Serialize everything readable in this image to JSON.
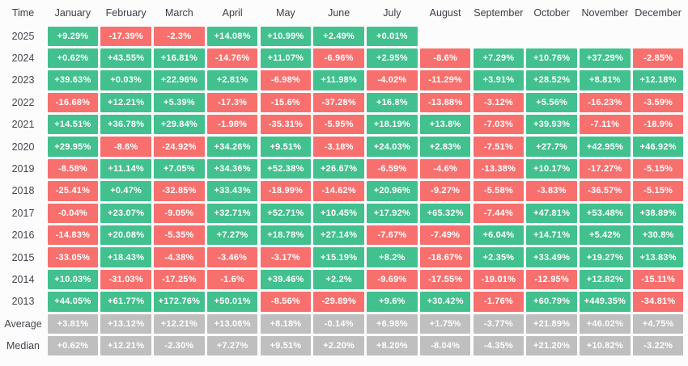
{
  "header": {
    "time_label": "Time"
  },
  "colors": {
    "positive": "#42c08e",
    "negative": "#f7706e",
    "neutral": "#bfbfbf",
    "background": "#fcfcfc",
    "value_text": "#ffffff",
    "label_text": "#3d3d47"
  },
  "chart_data": {
    "type": "heatmap",
    "title": "Monthly returns heatmap by year",
    "legend_position": "none",
    "grid": false,
    "columns": [
      "January",
      "February",
      "March",
      "April",
      "May",
      "June",
      "July",
      "August",
      "September",
      "October",
      "November",
      "December"
    ],
    "rows": [
      {
        "label": "2025",
        "kind": "year",
        "values": [
          "+9.29%",
          "-17.39%",
          "-2.3%",
          "+14.08%",
          "+10.99%",
          "+2.49%",
          "+0.01%",
          null,
          null,
          null,
          null,
          null
        ]
      },
      {
        "label": "2024",
        "kind": "year",
        "values": [
          "+0.62%",
          "+43.55%",
          "+16.81%",
          "-14.76%",
          "+11.07%",
          "-6.96%",
          "+2.95%",
          "-8.6%",
          "+7.29%",
          "+10.76%",
          "+37.29%",
          "-2.85%"
        ]
      },
      {
        "label": "2023",
        "kind": "year",
        "values": [
          "+39.63%",
          "+0.03%",
          "+22.96%",
          "+2.81%",
          "-6.98%",
          "+11.98%",
          "-4.02%",
          "-11.29%",
          "+3.91%",
          "+28.52%",
          "+8.81%",
          "+12.18%"
        ]
      },
      {
        "label": "2022",
        "kind": "year",
        "values": [
          "-16.68%",
          "+12.21%",
          "+5.39%",
          "-17.3%",
          "-15.6%",
          "-37.28%",
          "+16.8%",
          "-13.88%",
          "-3.12%",
          "+5.56%",
          "-16.23%",
          "-3.59%"
        ]
      },
      {
        "label": "2021",
        "kind": "year",
        "values": [
          "+14.51%",
          "+36.78%",
          "+29.84%",
          "-1.98%",
          "-35.31%",
          "-5.95%",
          "+18.19%",
          "+13.8%",
          "-7.03%",
          "+39.93%",
          "-7.11%",
          "-18.9%"
        ]
      },
      {
        "label": "2020",
        "kind": "year",
        "values": [
          "+29.95%",
          "-8.6%",
          "-24.92%",
          "+34.26%",
          "+9.51%",
          "-3.18%",
          "+24.03%",
          "+2.83%",
          "-7.51%",
          "+27.7%",
          "+42.95%",
          "+46.92%"
        ]
      },
      {
        "label": "2019",
        "kind": "year",
        "values": [
          "-8.58%",
          "+11.14%",
          "+7.05%",
          "+34.36%",
          "+52.38%",
          "+26.67%",
          "-6.59%",
          "-4.6%",
          "-13.38%",
          "+10.17%",
          "-17.27%",
          "-5.15%"
        ]
      },
      {
        "label": "2018",
        "kind": "year",
        "values": [
          "-25.41%",
          "+0.47%",
          "-32.85%",
          "+33.43%",
          "-18.99%",
          "-14.62%",
          "+20.96%",
          "-9.27%",
          "-5.58%",
          "-3.83%",
          "-36.57%",
          "-5.15%"
        ]
      },
      {
        "label": "2017",
        "kind": "year",
        "values": [
          "-0.04%",
          "+23.07%",
          "-9.05%",
          "+32.71%",
          "+52.71%",
          "+10.45%",
          "+17.92%",
          "+65.32%",
          "-7.44%",
          "+47.81%",
          "+53.48%",
          "+38.89%"
        ]
      },
      {
        "label": "2016",
        "kind": "year",
        "values": [
          "-14.83%",
          "+20.08%",
          "-5.35%",
          "+7.27%",
          "+18.78%",
          "+27.14%",
          "-7.67%",
          "-7.49%",
          "+6.04%",
          "+14.71%",
          "+5.42%",
          "+30.8%"
        ]
      },
      {
        "label": "2015",
        "kind": "year",
        "values": [
          "-33.05%",
          "+18.43%",
          "-4.38%",
          "-3.46%",
          "-3.17%",
          "+15.19%",
          "+8.2%",
          "-18.67%",
          "+2.35%",
          "+33.49%",
          "+19.27%",
          "+13.83%"
        ]
      },
      {
        "label": "2014",
        "kind": "year",
        "values": [
          "+10.03%",
          "-31.03%",
          "-17.25%",
          "-1.6%",
          "+39.46%",
          "+2.2%",
          "-9.69%",
          "-17.55%",
          "-19.01%",
          "-12.95%",
          "+12.82%",
          "-15.11%"
        ]
      },
      {
        "label": "2013",
        "kind": "year",
        "values": [
          "+44.05%",
          "+61.77%",
          "+172.76%",
          "+50.01%",
          "-8.56%",
          "-29.89%",
          "+9.6%",
          "+30.42%",
          "-1.76%",
          "+60.79%",
          "+449.35%",
          "-34.81%"
        ]
      },
      {
        "label": "Average",
        "kind": "stat",
        "values": [
          "+3.81%",
          "+13.12%",
          "+12.21%",
          "+13.06%",
          "+8.18%",
          "-0.14%",
          "+6.98%",
          "+1.75%",
          "-3.77%",
          "+21.89%",
          "+46.02%",
          "+4.75%"
        ]
      },
      {
        "label": "Median",
        "kind": "stat",
        "values": [
          "+0.62%",
          "+12.21%",
          "-2.30%",
          "+7.27%",
          "+9.51%",
          "+2.20%",
          "+8.20%",
          "-8.04%",
          "-4.35%",
          "+21.20%",
          "+10.82%",
          "-3.22%"
        ]
      }
    ]
  }
}
